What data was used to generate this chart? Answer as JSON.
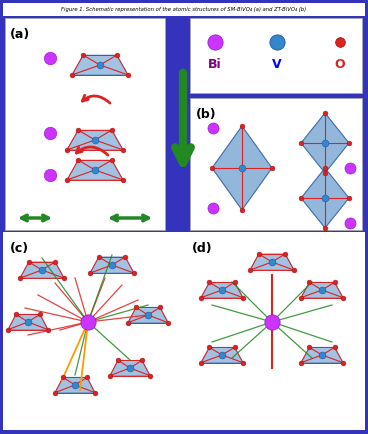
{
  "fig_bg": "#3333bb",
  "panel_bg": "#ffffff",
  "bi_color": "#cc33ff",
  "v_color": "#3388cc",
  "o_color": "#dd2222",
  "oct_face_color": "#6699cc",
  "oct_edge_color": "#3366aa",
  "oct_alpha": 0.6,
  "green_color": "#228822",
  "red_color": "#dd2222",
  "orange_color": "#ff9900",
  "label_a": "(a)",
  "label_b": "(b)",
  "label_c": "(c)",
  "label_d": "(d)",
  "legend_bi": "Bi",
  "legend_v": "V",
  "legend_o": "O"
}
